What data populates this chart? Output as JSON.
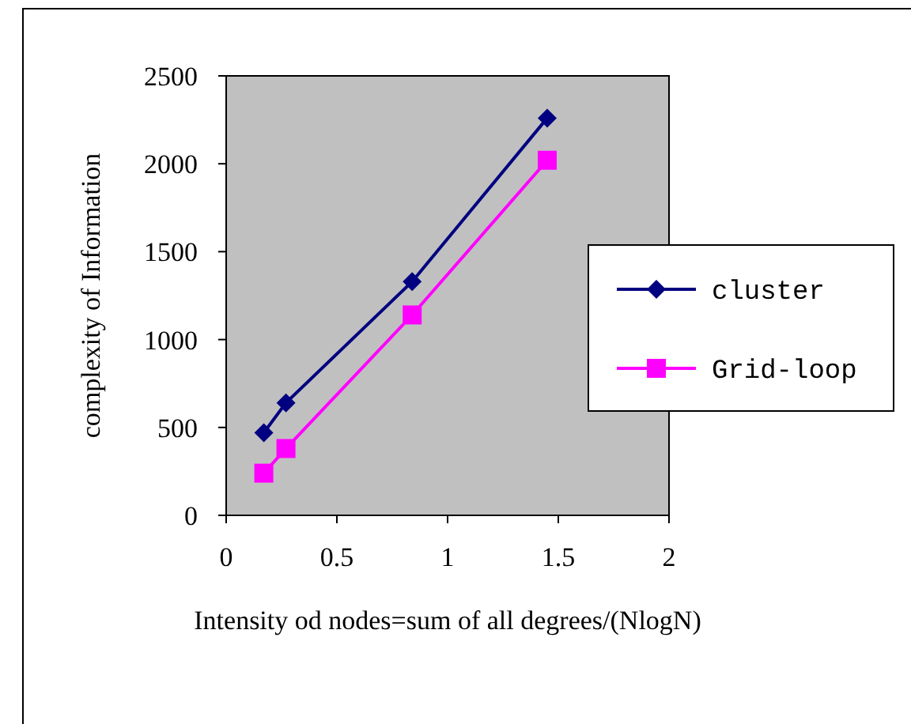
{
  "chart_data": {
    "type": "line",
    "xlabel": "Intensity od nodes=sum of all degrees/(NlogN)",
    "ylabel": "complexity of Information",
    "x": [
      0.17,
      0.27,
      0.84,
      1.45
    ],
    "series": [
      {
        "name": "cluster",
        "color": "#000080",
        "marker": "diamond",
        "values": [
          470,
          640,
          1330,
          2260
        ]
      },
      {
        "name": "Grid-loop",
        "color": "#ff00ff",
        "marker": "square",
        "values": [
          240,
          380,
          1140,
          2020
        ]
      }
    ],
    "xlim": [
      0,
      2
    ],
    "xticks": [
      0,
      {
        "value": 0.5,
        "label": "0.5"
      },
      1,
      {
        "value": 1.5,
        "label": "1.5"
      },
      2
    ],
    "ylim": [
      0,
      2500
    ],
    "yticks": [
      0,
      500,
      1000,
      1500,
      2000,
      2500
    ],
    "grid": false,
    "legend": "right"
  }
}
